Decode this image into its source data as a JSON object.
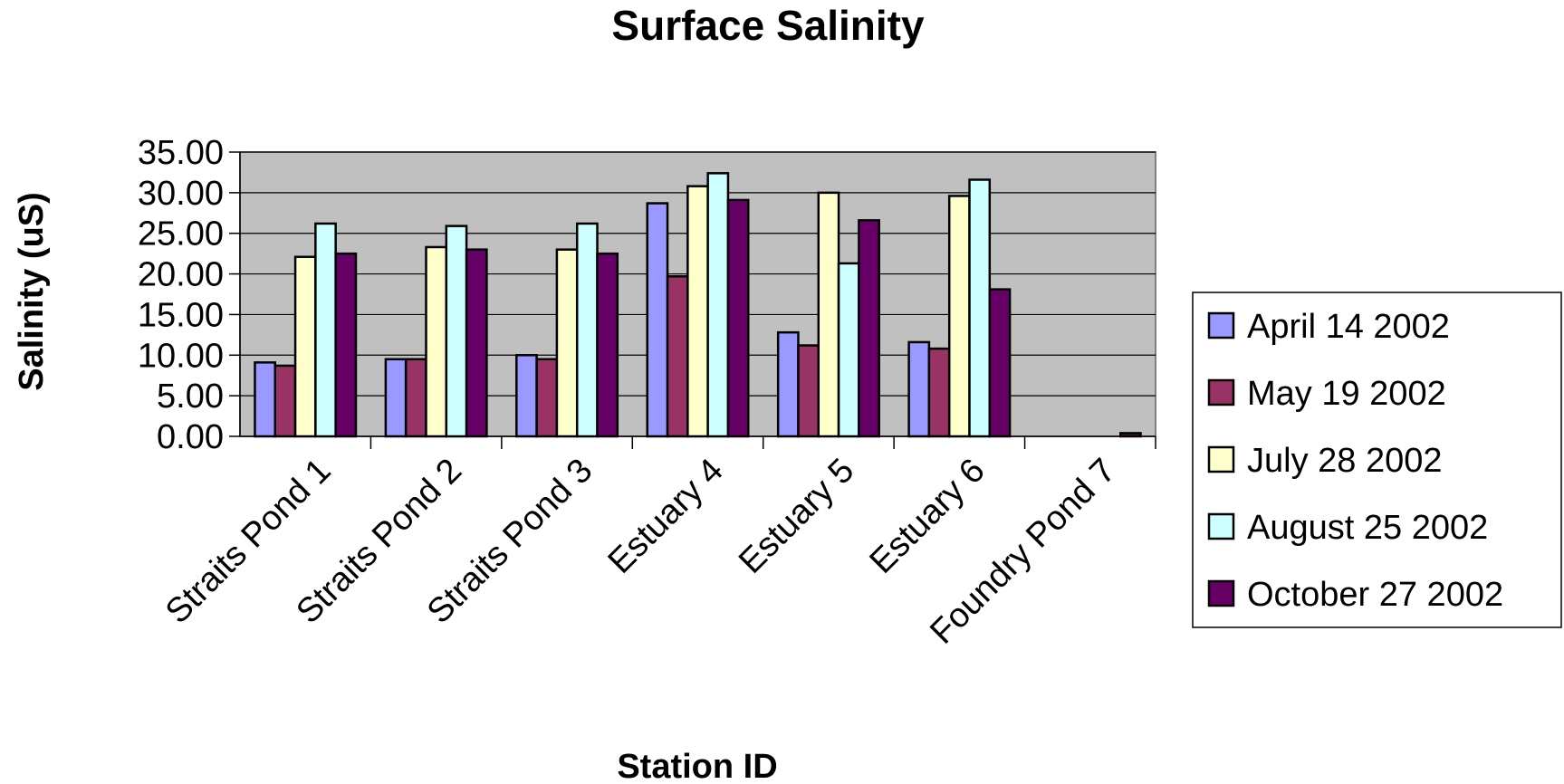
{
  "chart_data": {
    "type": "bar",
    "title": "Surface Salinity",
    "xlabel": "Station ID",
    "ylabel": "Salinity (uS)",
    "ylim": [
      0,
      35
    ],
    "yticks": [
      "0.00",
      "5.00",
      "10.00",
      "15.00",
      "20.00",
      "25.00",
      "30.00",
      "35.00"
    ],
    "grid": true,
    "legend_position": "right",
    "plot_background": "#c0c0c0",
    "categories": [
      "Straits Pond 1",
      "Straits Pond 2",
      "Straits Pond 3",
      "Estuary 4",
      "Estuary 5",
      "Estuary 6",
      "Foundry Pond 7"
    ],
    "series": [
      {
        "name": "April 14 2002",
        "color": "#9999ff",
        "values": [
          9.1,
          9.5,
          10.0,
          28.7,
          12.8,
          11.6,
          0
        ]
      },
      {
        "name": "May 19 2002",
        "color": "#993366",
        "values": [
          8.7,
          9.5,
          9.5,
          19.7,
          11.2,
          10.8,
          0
        ]
      },
      {
        "name": "July 28 2002",
        "color": "#ffffcc",
        "values": [
          22.1,
          23.3,
          23.0,
          30.8,
          30.0,
          29.6,
          0
        ]
      },
      {
        "name": "August 25 2002",
        "color": "#ccffff",
        "values": [
          26.2,
          25.9,
          26.2,
          32.4,
          21.3,
          31.6,
          0
        ]
      },
      {
        "name": "October 27 2002",
        "color": "#660066",
        "values": [
          22.5,
          23.0,
          22.5,
          29.1,
          26.6,
          18.1,
          0.4
        ]
      }
    ]
  }
}
